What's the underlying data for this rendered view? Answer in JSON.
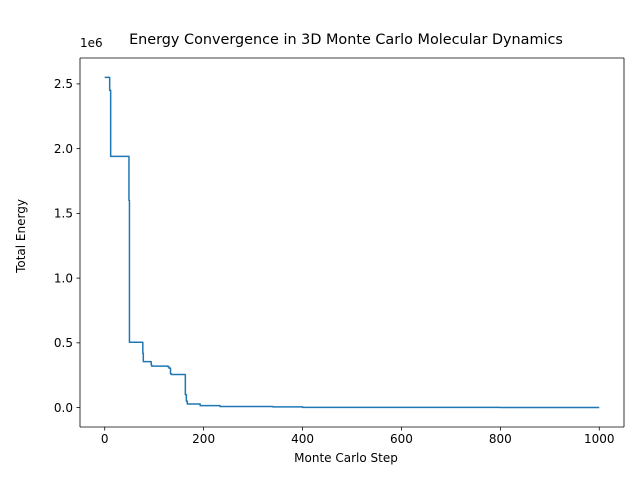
{
  "chart_data": {
    "type": "line",
    "title": "Energy Convergence in 3D Monte Carlo Molecular Dynamics",
    "xlabel": "Monte Carlo Step",
    "ylabel": "Total Energy",
    "y_offset_label": "1e6",
    "xlim": [
      -50,
      1050
    ],
    "ylim": [
      -150000,
      2700000
    ],
    "x_ticks": [
      0,
      200,
      400,
      600,
      800,
      1000
    ],
    "x_tick_labels": [
      "0",
      "200",
      "400",
      "600",
      "800",
      "1000"
    ],
    "y_ticks": [
      0,
      500000,
      1000000,
      1500000,
      2000000,
      2500000
    ],
    "y_tick_labels": [
      "0.0",
      "0.5",
      "1.0",
      "1.5",
      "2.0",
      "2.5"
    ],
    "series": [
      {
        "name": "Total Energy",
        "color": "#1f77b4",
        "x": [
          0,
          10,
          10,
          12,
          12,
          49,
          49,
          50,
          50,
          77,
          77,
          78,
          78,
          94,
          94,
          95,
          95,
          128,
          128,
          130,
          130,
          133,
          133,
          135,
          135,
          163,
          163,
          165,
          165,
          167,
          167,
          193,
          193,
          233,
          233,
          340,
          340,
          400,
          400,
          800,
          800,
          1000
        ],
        "y": [
          2550000,
          2550000,
          2450000,
          2450000,
          1940000,
          1940000,
          1600000,
          1600000,
          505000,
          505000,
          420000,
          420000,
          355000,
          355000,
          330000,
          330000,
          320000,
          320000,
          315000,
          315000,
          305000,
          305000,
          260000,
          260000,
          255000,
          255000,
          100000,
          100000,
          50000,
          50000,
          28000,
          28000,
          15000,
          15000,
          8000,
          8000,
          5000,
          5000,
          2000,
          2000,
          1000,
          1000
        ]
      }
    ]
  }
}
